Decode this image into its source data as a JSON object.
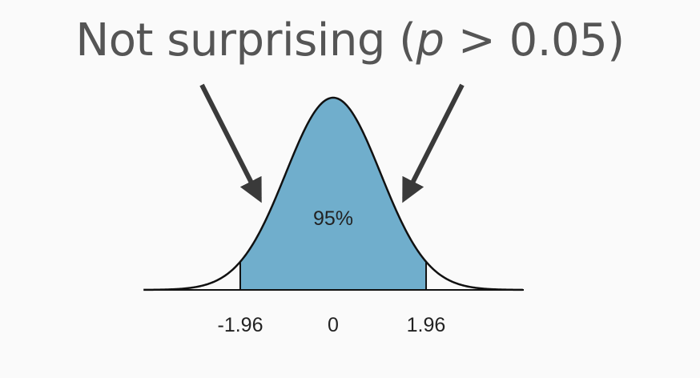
{
  "slide": {
    "heading_prefix": "Not surprising (",
    "heading_p": "p",
    "heading_suffix": " > 0.05)"
  },
  "diagram": {
    "center_label": "95%",
    "fill_color": "#70aecc",
    "curve_color": "#111111",
    "arrow_color": "#3a3a3a",
    "critical_low": -1.96,
    "critical_high": 1.96,
    "tick_labels": [
      "-1.96",
      "0",
      "1.96"
    ]
  }
}
